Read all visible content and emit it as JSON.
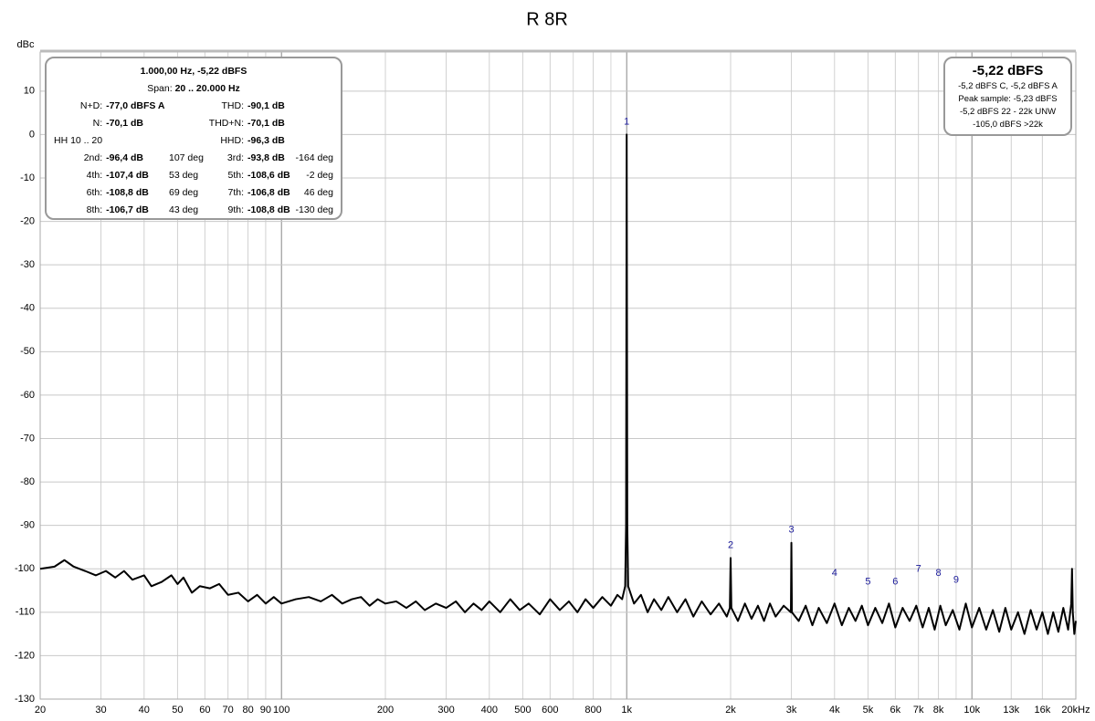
{
  "chart_data": {
    "type": "line",
    "title": "R 8R",
    "y_label": "dBc",
    "log_x": true,
    "grid": true,
    "color": "#000000",
    "xlim": [
      20,
      20000
    ],
    "ylim": [
      -130,
      19
    ],
    "yticks": [
      10,
      0,
      -10,
      -20,
      -30,
      -40,
      -50,
      -60,
      -70,
      -80,
      -90,
      -100,
      -110,
      -120,
      -130
    ],
    "xticks": [
      20,
      30,
      40,
      50,
      60,
      70,
      80,
      90,
      100,
      200,
      300,
      400,
      500,
      600,
      800,
      {
        "value": 1000,
        "label": "1k"
      },
      {
        "value": 2000,
        "label": "2k"
      },
      {
        "value": 3000,
        "label": "3k"
      },
      {
        "value": 4000,
        "label": "4k"
      },
      {
        "value": 5000,
        "label": "5k"
      },
      {
        "value": 6000,
        "label": "6k"
      },
      {
        "value": 7000,
        "label": "7k"
      },
      {
        "value": 8000,
        "label": "8k"
      },
      {
        "value": 10000,
        "label": "10k"
      },
      {
        "value": 13000,
        "label": "13k"
      },
      {
        "value": 16000,
        "label": "16k"
      },
      {
        "value": 20000,
        "label": "20kHz"
      }
    ],
    "x_minor_grid": [
      700,
      900,
      9000
    ],
    "x": [
      20,
      22,
      23.5,
      25,
      27,
      29,
      31,
      33,
      35,
      37,
      40,
      42,
      45,
      48,
      50,
      52,
      55,
      58,
      62,
      66,
      70,
      75,
      80,
      85,
      90,
      95,
      100,
      110,
      120,
      130,
      140,
      150,
      160,
      170,
      180,
      190,
      200,
      215,
      230,
      245,
      260,
      280,
      300,
      320,
      340,
      360,
      380,
      400,
      430,
      460,
      490,
      520,
      560,
      600,
      640,
      680,
      720,
      760,
      800,
      850,
      900,
      940,
      970,
      990,
      996,
      1000,
      1004,
      1010,
      1050,
      1100,
      1150,
      1200,
      1260,
      1320,
      1400,
      1480,
      1560,
      1650,
      1750,
      1850,
      1950,
      1990,
      2000,
      2010,
      2100,
      2200,
      2300,
      2400,
      2500,
      2600,
      2700,
      2850,
      2990,
      3000,
      3010,
      3150,
      3300,
      3450,
      3600,
      3800,
      4000,
      4200,
      4400,
      4600,
      4800,
      5000,
      5250,
      5500,
      5750,
      6000,
      6300,
      6600,
      6900,
      7200,
      7500,
      7800,
      8100,
      8400,
      8800,
      9200,
      9600,
      10000,
      10500,
      11000,
      11500,
      12000,
      12500,
      13000,
      13600,
      14200,
      14800,
      15400,
      16000,
      16600,
      17200,
      17800,
      18400,
      19000,
      19400,
      19500,
      19600,
      19800,
      20000
    ],
    "values": [
      -100,
      -99.5,
      -98,
      -99.5,
      -100.5,
      -101.5,
      -100.5,
      -102,
      -100.5,
      -102.5,
      -101.5,
      -104,
      -103,
      -101.5,
      -103.5,
      -102,
      -105.5,
      -104,
      -104.5,
      -103.5,
      -106,
      -105.5,
      -107.5,
      -106,
      -108,
      -106.5,
      -108,
      -107,
      -106.5,
      -107.5,
      -106,
      -108,
      -107,
      -106.5,
      -108.5,
      -107,
      -108,
      -107.5,
      -109,
      -107.5,
      -109.5,
      -108,
      -109,
      -107.5,
      -110,
      -108,
      -109.5,
      -107.5,
      -110,
      -107,
      -109.5,
      -108,
      -110.5,
      -107,
      -109.5,
      -107.5,
      -110,
      -107,
      -109,
      -106.5,
      -108.5,
      -106,
      -107,
      -104,
      -90,
      0,
      -90,
      -104,
      -108,
      -106,
      -110,
      -107,
      -109.5,
      -106.5,
      -110,
      -107,
      -111,
      -107.5,
      -110.5,
      -108,
      -111,
      -109,
      -97.5,
      -109,
      -112,
      -108,
      -111.5,
      -108.5,
      -112,
      -108,
      -111,
      -108.5,
      -110,
      -94,
      -110,
      -112,
      -108.5,
      -113,
      -109,
      -112.5,
      -108,
      -113,
      -109,
      -112,
      -108.5,
      -113,
      -109,
      -112.5,
      -108,
      -113.5,
      -109,
      -112,
      -108.5,
      -113.5,
      -109,
      -114,
      -108.5,
      -113,
      -109.5,
      -114,
      -108,
      -113.5,
      -109,
      -114,
      -109.5,
      -114.5,
      -109,
      -114,
      -110,
      -115,
      -109.5,
      -114,
      -110,
      -115,
      -110,
      -114.5,
      -109,
      -114,
      -108,
      -100,
      -110,
      -115,
      -112
    ],
    "annotations": [
      {
        "text": "1",
        "x": 1000,
        "y": 0
      },
      {
        "text": "2",
        "x": 2000,
        "y": -97.5
      },
      {
        "text": "3",
        "x": 3000,
        "y": -94
      },
      {
        "text": "4",
        "x": 4000,
        "y": -104
      },
      {
        "text": "5",
        "x": 5000,
        "y": -106
      },
      {
        "text": "6",
        "x": 6000,
        "y": -106
      },
      {
        "text": "7",
        "x": 7000,
        "y": -103
      },
      {
        "text": "8",
        "x": 8000,
        "y": -104
      },
      {
        "text": "9",
        "x": 9000,
        "y": -105.5
      }
    ],
    "info_box": {
      "heading": "1.000,00 Hz, -5,22 dBFS",
      "span_label": "Span:",
      "span_value": "20 .. 20.000 Hz",
      "rows": [
        [
          {
            "label": "N+D:",
            "value": "-77,0 dBFS A"
          },
          null,
          {
            "label": "THD:",
            "value": "-90,1 dB"
          },
          null
        ],
        [
          {
            "label": "N:",
            "value": "-70,1 dB"
          },
          null,
          {
            "label": "THD+N:",
            "value": "-70,1 dB"
          },
          null
        ],
        [
          {
            "label": "HH 10 .. 20"
          },
          null,
          {
            "label": "HHD:",
            "value": "-96,3 dB"
          },
          null
        ],
        [
          {
            "label": "2nd:",
            "value": "-96,4 dB"
          },
          "107 deg",
          {
            "label": "3rd:",
            "value": "-93,8 dB"
          },
          "-164 deg"
        ],
        [
          {
            "label": "4th:",
            "value": "-107,4 dB"
          },
          "53 deg",
          {
            "label": "5th:",
            "value": "-108,6 dB"
          },
          "-2 deg"
        ],
        [
          {
            "label": "6th:",
            "value": "-108,8 dB"
          },
          "69 deg",
          {
            "label": "7th:",
            "value": "-106,8 dB"
          },
          "46 deg"
        ],
        [
          {
            "label": "8th:",
            "value": "-106,7 dB"
          },
          "43 deg",
          {
            "label": "9th:",
            "value": "-108,8 dB"
          },
          "-130 deg"
        ]
      ]
    },
    "level_box": {
      "heading": "-5,22 dBFS",
      "lines": [
        "-5,2 dBFS C, -5,2 dBFS A",
        "Peak sample: -5,23 dBFS",
        "-5,2 dBFS 22 - 22k UNW",
        "-105,0 dBFS >22k"
      ]
    }
  }
}
